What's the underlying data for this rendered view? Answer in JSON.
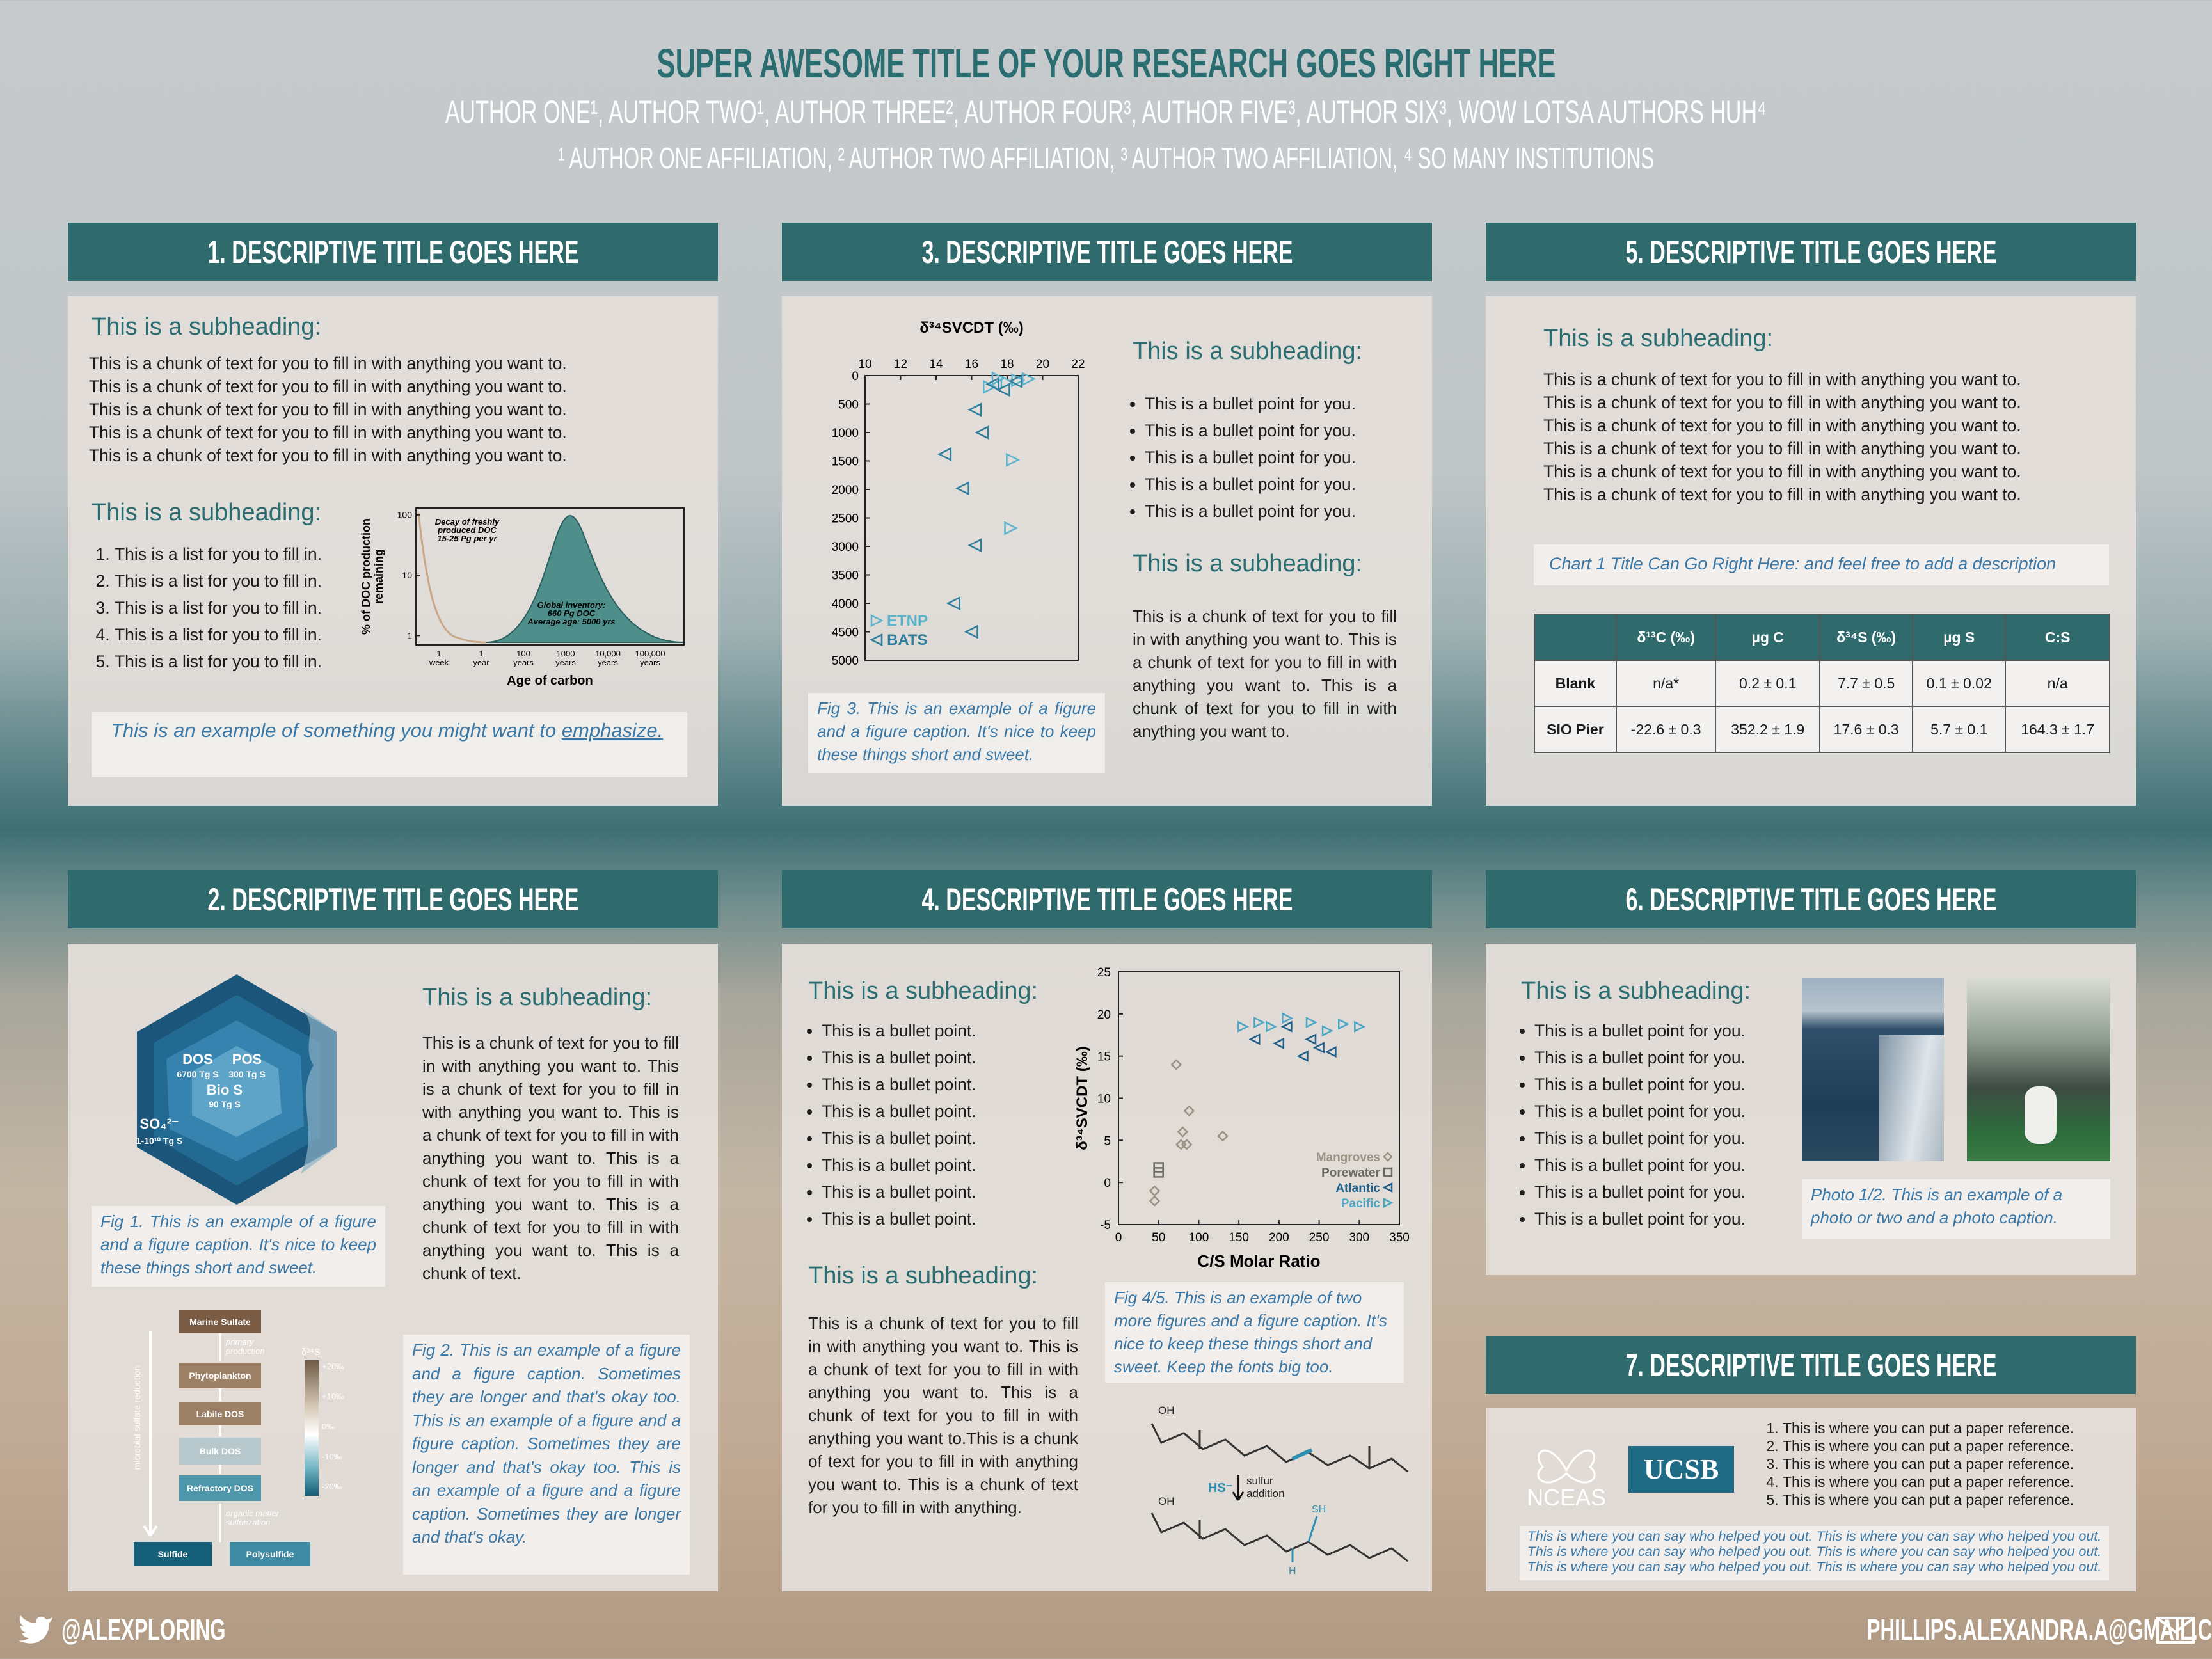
{
  "header": {
    "title": "SUPER AWESOME TITLE OF YOUR RESEARCH GOES RIGHT HERE",
    "authors": "AUTHOR ONE¹, AUTHOR TWO¹, AUTHOR THREE², AUTHOR FOUR³, AUTHOR FIVE³, AUTHOR SIX³, WOW LOTSA AUTHORS HUH⁴",
    "affiliations": "¹ AUTHOR ONE AFFILIATION, ² AUTHOR TWO AFFILIATION, ³ AUTHOR TWO AFFILIATION, ⁴ SO MANY INSTITUTIONS"
  },
  "section1": {
    "heading": "1. DESCRIPTIVE TITLE GOES HERE",
    "subheading_1": "This is a subheading:",
    "text_lines": [
      "This is a chunk of text for you to fill in with anything you want to.",
      "This is a chunk of text for you to fill in with anything you want to.",
      "This is a chunk of text for you to fill in with anything you want to.",
      "This is a chunk of text for you to fill in with anything you want to.",
      "This is a chunk of text for you to fill in with anything you want to."
    ],
    "subheading_2": "This is a subheading:",
    "list": [
      "This is a list for you to fill in.",
      "This is a list for you to fill in.",
      "This is a list for you to fill in.",
      "This is a list for you to fill in.",
      "This is a list for you to fill in."
    ],
    "figure": {
      "type": "line",
      "ylabel_lines": [
        "% of DOC production",
        "remaining"
      ],
      "xlabel": "Age of carbon",
      "log_y": true,
      "ylim": [
        0.7,
        130
      ],
      "yticks": [
        100,
        10,
        1
      ],
      "xtick_labels": [
        "1 week",
        "1 year",
        "100 years",
        "1000 years",
        "10,000 years",
        "100,000 years"
      ],
      "annotation_1": [
        "Decay of freshly",
        "produced DOC",
        "15-25 Pg per yr"
      ],
      "annotation_2": [
        "Global inventory:",
        "660 Pg DOC",
        "Average age: 5000 yrs"
      ]
    },
    "callout": "This is an example of something you might want to",
    "callout_emphasis": "emphasize."
  },
  "section2": {
    "heading": "2. DESCRIPTIVE TITLE GOES HERE",
    "diagram_1": {
      "labels": [
        "DOS",
        "6700 Tg S",
        "POS",
        "300 Tg S",
        "Bio S",
        "90 Tg S",
        "SO₄²⁻",
        "1-10¹⁰ Tg S"
      ]
    },
    "subheading": "This is a subheading:",
    "paragraph": "This is a chunk of text for you to fill in with anything you want to. This is a chunk of text for you to fill in with anything you want to. This is a chunk of text for you to fill in with anything you want to. This is a chunk of text for you to fill in with anything you want to. This is a chunk of text for you to fill in with anything you want to. This is a chunk of text.",
    "fig1_caption": "Fig 1. This is an example of a figure and a figure caption.  It's nice to keep these things short and sweet.",
    "diagram_2": {
      "boxes": [
        "Marine Sulfate",
        "Phytoplankton",
        "Labile DOS",
        "Bulk DOS",
        "Refractory DOS",
        "Sulfide",
        "Polysulfide"
      ],
      "side_label": "microbial sulfate reduction",
      "arrow_1": [
        "primary",
        "production"
      ],
      "arrow_2": [
        "organic matter",
        "sulfurization"
      ],
      "scale_title": "δ³⁴S",
      "scale_labels": [
        "+20‰",
        "+10‰",
        "0‰",
        "-10‰",
        "-20‰"
      ]
    },
    "fig2_caption": "Fig 2. This is an example of a figure and a figure caption. Sometimes they are longer and that's okay too. This is an example of a figure and a figure caption. Sometimes they are longer and that's okay too. This is an example of a figure and a figure caption. Sometimes they are longer and that's okay."
  },
  "section3": {
    "heading": "3. DESCRIPTIVE TITLE GOES HERE",
    "figure": {
      "type": "scatter",
      "title": "δ³⁴SVCDT (‰)",
      "xlim": [
        10,
        22
      ],
      "xticks": [
        10,
        12,
        14,
        16,
        18,
        20,
        22
      ],
      "ylim": [
        0,
        5000
      ],
      "y_inverted": true,
      "yticks": [
        0,
        500,
        1000,
        1500,
        2000,
        2500,
        3000,
        3500,
        4000,
        4500,
        5000
      ],
      "series": [
        {
          "name": "ETNP",
          "color": "#5ab4cc",
          "marker": "triangle-right",
          "x": [
            17.5,
            18.0,
            18.6,
            19.2,
            17.0,
            18.3,
            18.2
          ],
          "values": [
            50,
            120,
            80,
            60,
            200,
            1480,
            2680
          ]
        },
        {
          "name": "BATS",
          "color": "#2f7f9c",
          "marker": "triangle-left",
          "x": [
            17.2,
            17.8,
            18.5,
            16.2,
            16.6,
            14.5,
            15.5,
            16.2,
            15.0,
            16.0
          ],
          "values": [
            150,
            250,
            100,
            600,
            1000,
            1380,
            1980,
            2980,
            4000,
            4500
          ]
        }
      ]
    },
    "caption": "Fig 3. This is an example of a figure and a figure caption.  It's nice to keep these things short and sweet.",
    "subheading_1": "This is a subheading:",
    "bullets": [
      "This is a bullet point for you.",
      "This is a bullet point for you.",
      "This is a bullet point for you.",
      "This is a bullet point for you.",
      "This is a bullet point for you."
    ],
    "subheading_2": "This is a subheading:",
    "paragraph": "This is a chunk of text for you to fill in with anything you want to. This is a chunk of text for you to fill in with anything you want to. This is a chunk of text for you to fill in with anything you want to."
  },
  "section4": {
    "heading": "4. DESCRIPTIVE TITLE GOES HERE",
    "subheading_1": "This is a subheading:",
    "bullets": [
      "This is a bullet point.",
      "This is a bullet point.",
      "This is a bullet point.",
      "This is a bullet point.",
      "This is a bullet point.",
      "This is a bullet point.",
      "This is a bullet point.",
      "This is a bullet point."
    ],
    "subheading_2": "This is a subheading:",
    "paragraph": "This is a chunk of text for you to fill in with anything you want to. This is a chunk of text for you to fill in with anything you want to. This is a chunk of text for you to fill in with anything you want to.This is a chunk of text for you to fill in with anything you want to. This is a chunk of text for you to fill in with anything.",
    "figure": {
      "type": "scatter",
      "xlabel": "C/S Molar Ratio",
      "ylabel": "δ³⁴SVCDT (‰)",
      "xlim": [
        0,
        350
      ],
      "xticks": [
        0,
        50,
        100,
        150,
        200,
        250,
        300,
        350
      ],
      "ylim": [
        -5,
        25
      ],
      "yticks": [
        -5,
        0,
        5,
        10,
        15,
        20,
        25
      ],
      "series": [
        {
          "name": "Mangroves",
          "color": "#9a9184",
          "marker": "diamond",
          "x": [
            72,
            88,
            80,
            78,
            85,
            130,
            45,
            45
          ],
          "values": [
            14,
            8.5,
            6,
            4.5,
            4.5,
            5.5,
            -1,
            -2.2
          ]
        },
        {
          "name": "Porewater",
          "color": "#6e6a66",
          "marker": "square",
          "x": [
            50,
            50
          ],
          "values": [
            1.8,
            1.2
          ]
        },
        {
          "name": "Atlantic",
          "color": "#1f5f8a",
          "marker": "triangle-left",
          "x": [
            170,
            200,
            230,
            250,
            210,
            240,
            265
          ],
          "values": [
            17,
            16.5,
            15,
            16,
            18.5,
            17,
            15.5
          ]
        },
        {
          "name": "Pacific",
          "color": "#4aa6c4",
          "marker": "triangle-right",
          "x": [
            155,
            175,
            190,
            210,
            240,
            260,
            280,
            300
          ],
          "values": [
            18.5,
            19,
            18.5,
            19.5,
            19,
            18,
            18.8,
            18.5
          ]
        }
      ]
    },
    "caption": "Fig 4/5. This is an example of two more figures and a figure caption. It's nice to keep these things short and sweet. Keep the fonts big too.",
    "molecule_labels": {
      "oh_1": "OH",
      "oh_2": "OH",
      "hs": "HS⁻",
      "reaction": [
        "sulfur",
        "addition"
      ],
      "sh": "SH",
      "h": "H"
    }
  },
  "section5": {
    "heading": "5. DESCRIPTIVE TITLE GOES HERE",
    "subheading": "This is a subheading:",
    "text_lines": [
      "This is a chunk of text for you to fill in with anything you want to.",
      "This is a chunk of text for you to fill in with anything you want to.",
      "This is a chunk of text for you to fill in with anything you want to.",
      "This is a chunk of text for you to fill in with anything you want to.",
      "This is a chunk of text for you to fill in with anything you want to.",
      "This is a chunk of text for you to fill in with anything you want to."
    ],
    "chart_title": "Chart 1 Title Can Go Right Here: and feel free to add a description",
    "table": {
      "columns": [
        "δ¹³C (‰)",
        "µg C",
        "δ³⁴S (‰)",
        "µg S",
        "C:S"
      ],
      "rows": [
        [
          "Blank",
          "n/a*",
          "0.2 ± 0.1",
          "7.7 ± 0.5",
          "0.1 ± 0.02",
          "n/a"
        ],
        [
          "SIO Pier",
          "-22.6 ± 0.3",
          "352.2 ± 1.9",
          "17.6 ± 0.3",
          "5.7 ± 0.1",
          "164.3 ± 1.7"
        ]
      ]
    }
  },
  "section6": {
    "heading": "6. DESCRIPTIVE TITLE GOES HERE",
    "subheading": "This is a subheading:",
    "bullets": [
      "This is a bullet point for you.",
      "This is a bullet point for you.",
      "This is a bullet point for you.",
      "This is a bullet point for you.",
      "This is a bullet point for you.",
      "This is a bullet point for you.",
      "This is a bullet point for you.",
      "This is a bullet point for you."
    ],
    "caption": "Photo 1/2. This is an example of a photo or two and a photo caption."
  },
  "section7": {
    "heading": "7. DESCRIPTIVE TITLE GOES HERE",
    "logos": [
      "NCEAS",
      "UCSB"
    ],
    "references": [
      "This is where you can put a paper reference.",
      "This is where you can put a paper reference.",
      "This is where you can put a paper reference.",
      "This is where you can put a paper reference.",
      "This is where you can put a paper reference."
    ],
    "acknowledgement": "This is where you can say who helped you out. This is where you can say who helped you out. This is where you can say who helped you out. This is where you can say who helped you out. This is where you can say who helped you out. This is where you can say who helped you out."
  },
  "footer": {
    "twitter": "@ALEXPLORING",
    "email": "PHILLIPS.ALEXANDRA.A@GMAIL.COM"
  }
}
